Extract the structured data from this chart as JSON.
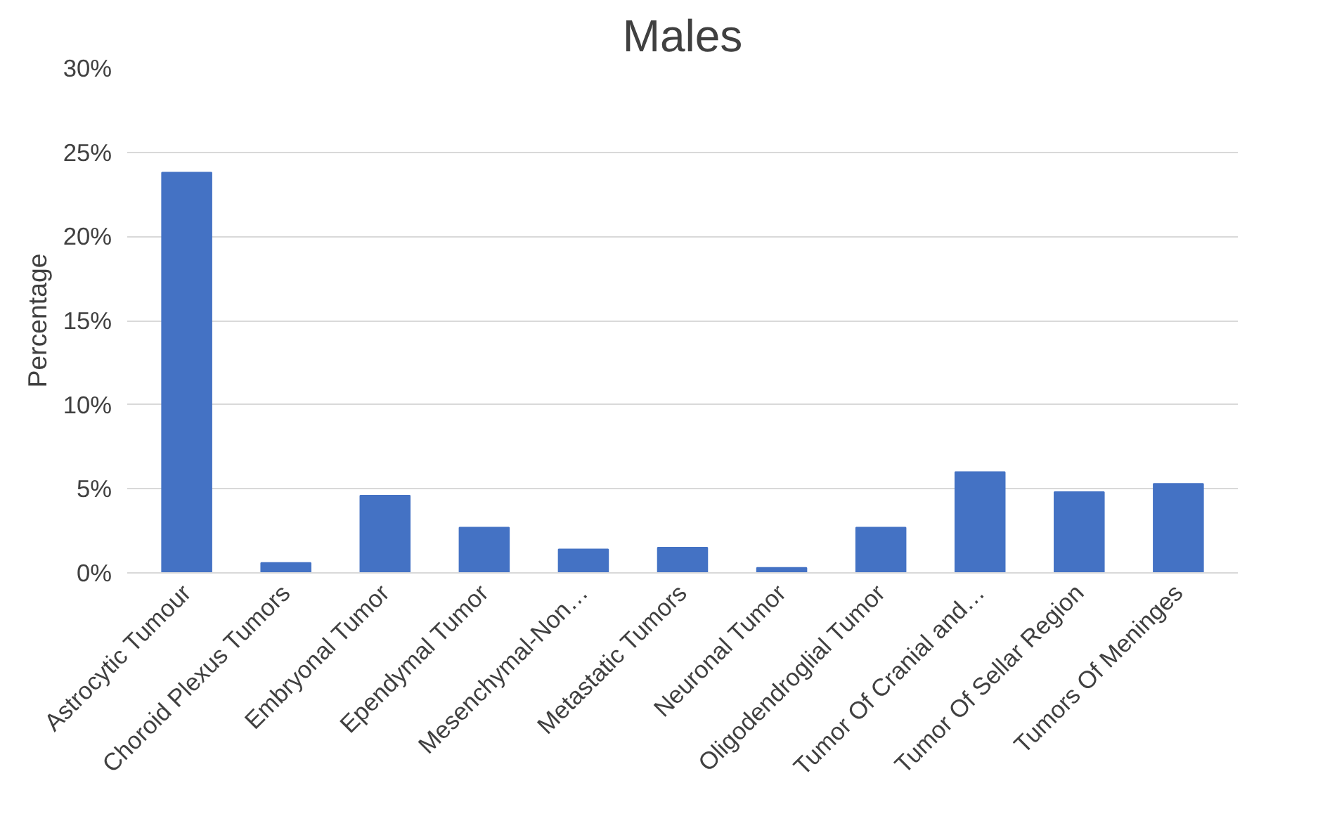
{
  "chart_data": {
    "type": "bar",
    "title": "Males",
    "ylabel": "Percentage",
    "categories": [
      "Astrocytic Tumour",
      "Choroid Plexus Tumors",
      "Embryonal Tumor",
      "Ependymal Tumor",
      "Mesenchymal-Non…",
      "Metastatic Tumors",
      "Neuronal Tumor",
      "Oligodendroglial Tumor",
      "Tumor Of Cranial and…",
      "Tumor Of Sellar Region",
      "Tumors Of Meninges"
    ],
    "values": [
      23.8,
      0.6,
      4.6,
      2.7,
      1.4,
      1.5,
      0.3,
      2.7,
      6.0,
      4.8,
      5.3
    ],
    "color": "#4472c4",
    "ylim": [
      0,
      30
    ],
    "yticks": [
      {
        "value": 0,
        "label": "0%"
      },
      {
        "value": 5,
        "label": "5%"
      },
      {
        "value": 10,
        "label": "10%"
      },
      {
        "value": 15,
        "label": "15%"
      },
      {
        "value": 20,
        "label": "20%"
      },
      {
        "value": 25,
        "label": "25%"
      },
      {
        "value": 30,
        "label": "30%"
      }
    ],
    "grid": "y"
  }
}
